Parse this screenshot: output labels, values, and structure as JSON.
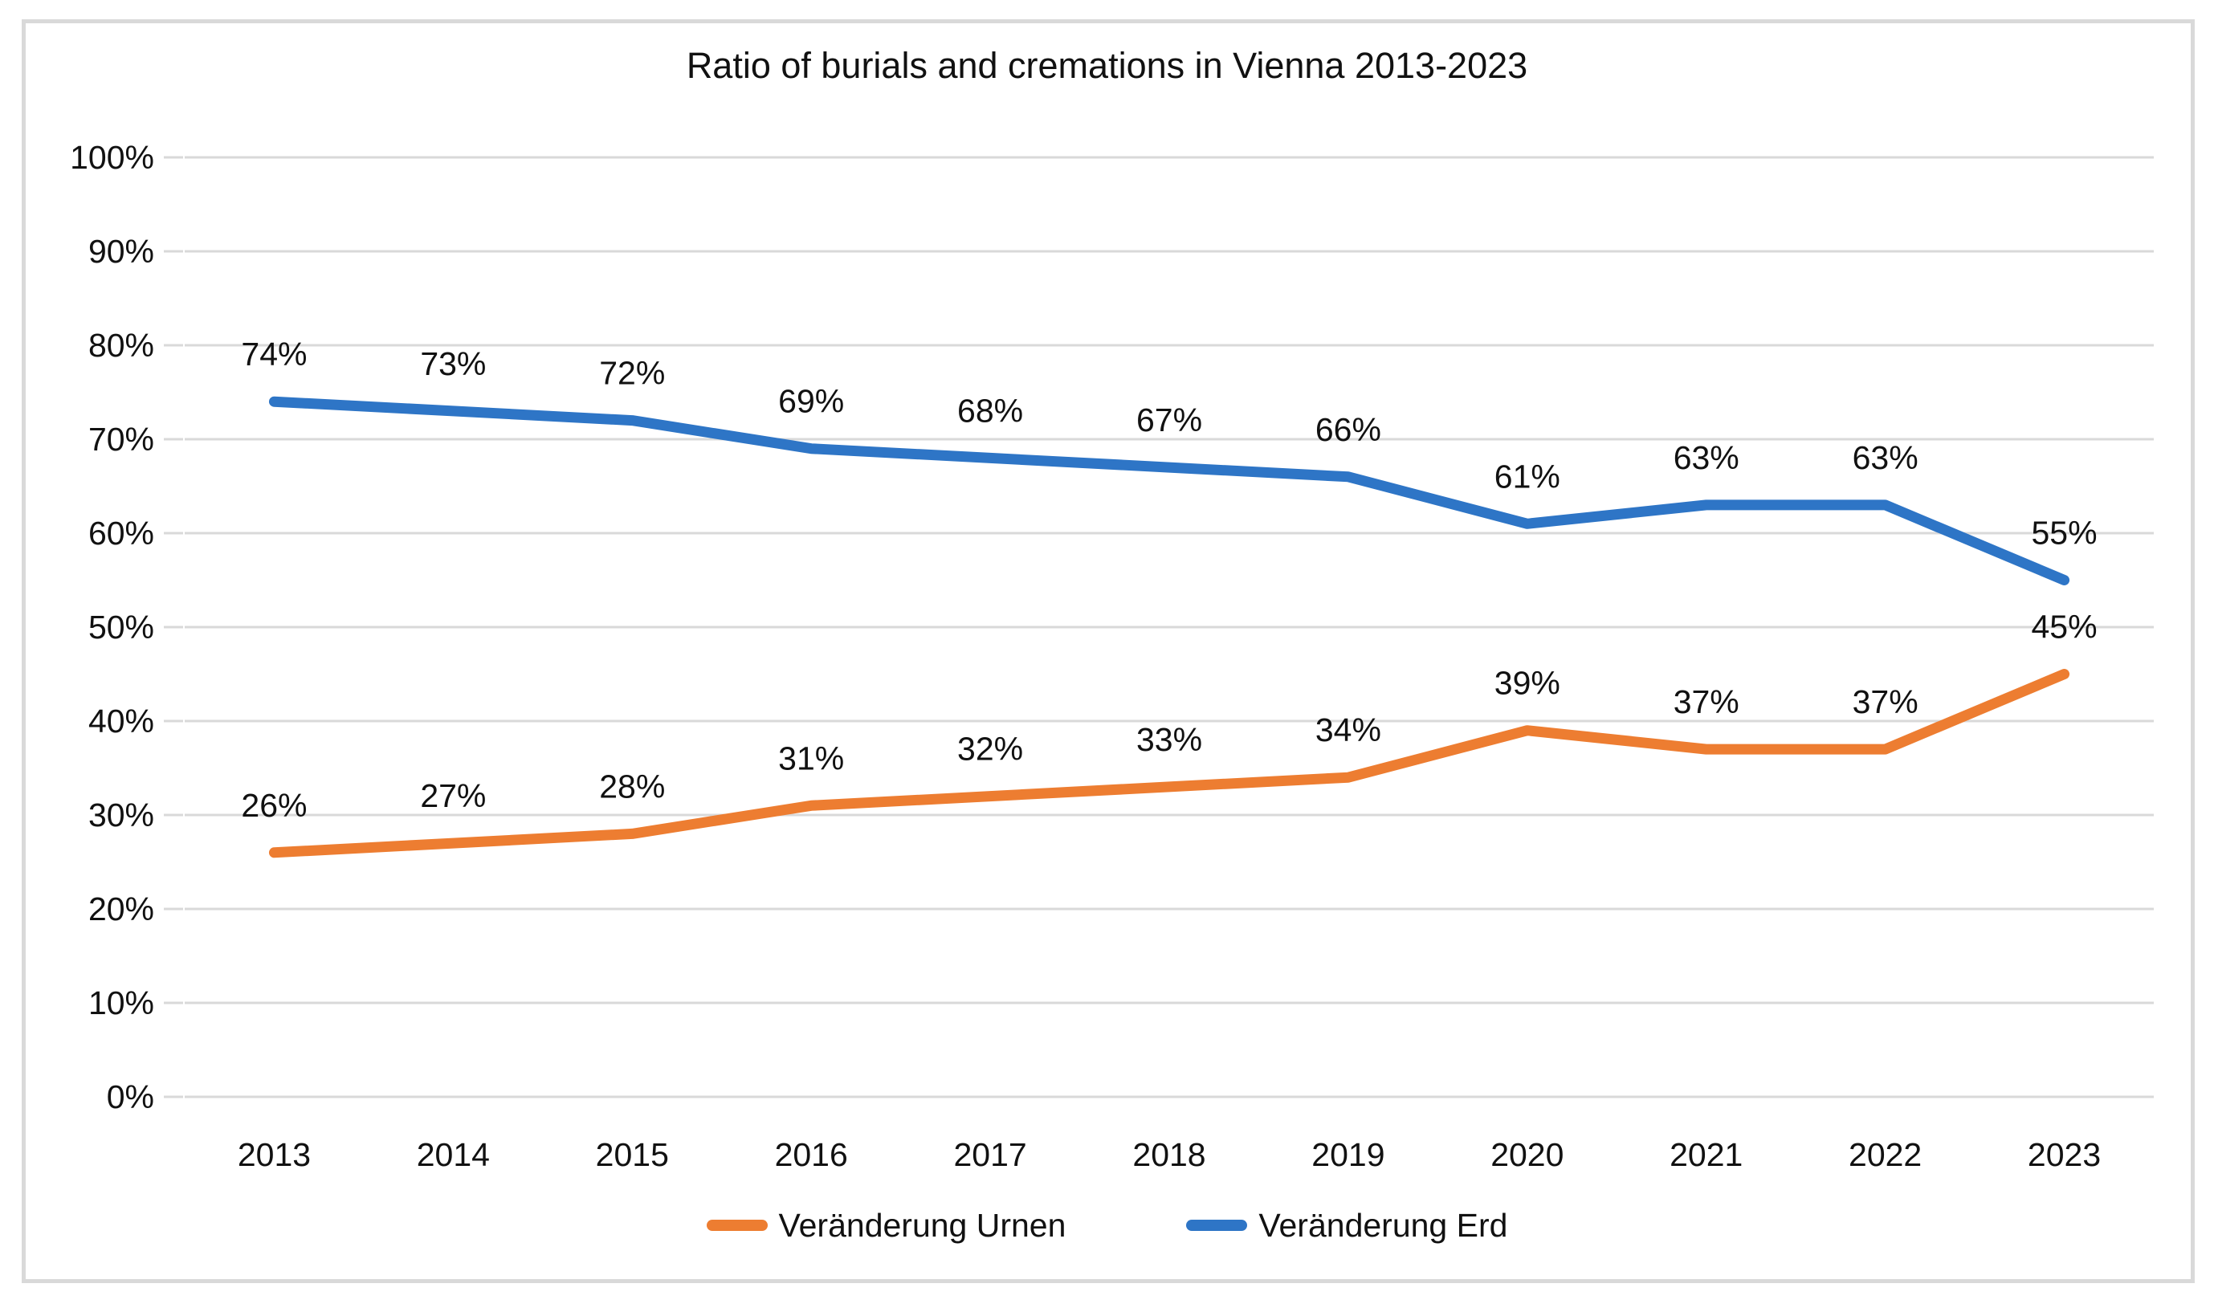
{
  "page": {
    "background": "#ffffff",
    "frame_border_color": "#d9d9d9"
  },
  "chart_data": {
    "type": "line",
    "title": "Ratio of burials and cremations in Vienna 2013-2023",
    "categories": [
      "2013",
      "2014",
      "2015",
      "2016",
      "2017",
      "2018",
      "2019",
      "2020",
      "2021",
      "2022",
      "2023"
    ],
    "series": [
      {
        "name": "Veränderung Urnen",
        "color": "#ED7D31",
        "values": [
          26,
          27,
          28,
          31,
          32,
          33,
          34,
          39,
          37,
          37,
          45
        ],
        "data_labels": [
          "26%",
          "27%",
          "28%",
          "31%",
          "32%",
          "33%",
          "34%",
          "39%",
          "37%",
          "37%",
          "45%"
        ]
      },
      {
        "name": "Veränderung Erd",
        "color": "#2E75C6",
        "values": [
          74,
          73,
          72,
          69,
          68,
          67,
          66,
          61,
          63,
          63,
          55
        ],
        "data_labels": [
          "74%",
          "73%",
          "72%",
          "69%",
          "68%",
          "67%",
          "66%",
          "61%",
          "63%",
          "63%",
          "55%"
        ]
      }
    ],
    "ylim": [
      0,
      100
    ],
    "y_tick_labels": [
      "0%",
      "10%",
      "20%",
      "30%",
      "40%",
      "50%",
      "60%",
      "70%",
      "80%",
      "90%",
      "100%"
    ],
    "grid": "horizontal",
    "gridline_color": "#d9d9d9",
    "text_color": "#111111",
    "legend_position": "bottom",
    "data_label_position": "above-points"
  }
}
